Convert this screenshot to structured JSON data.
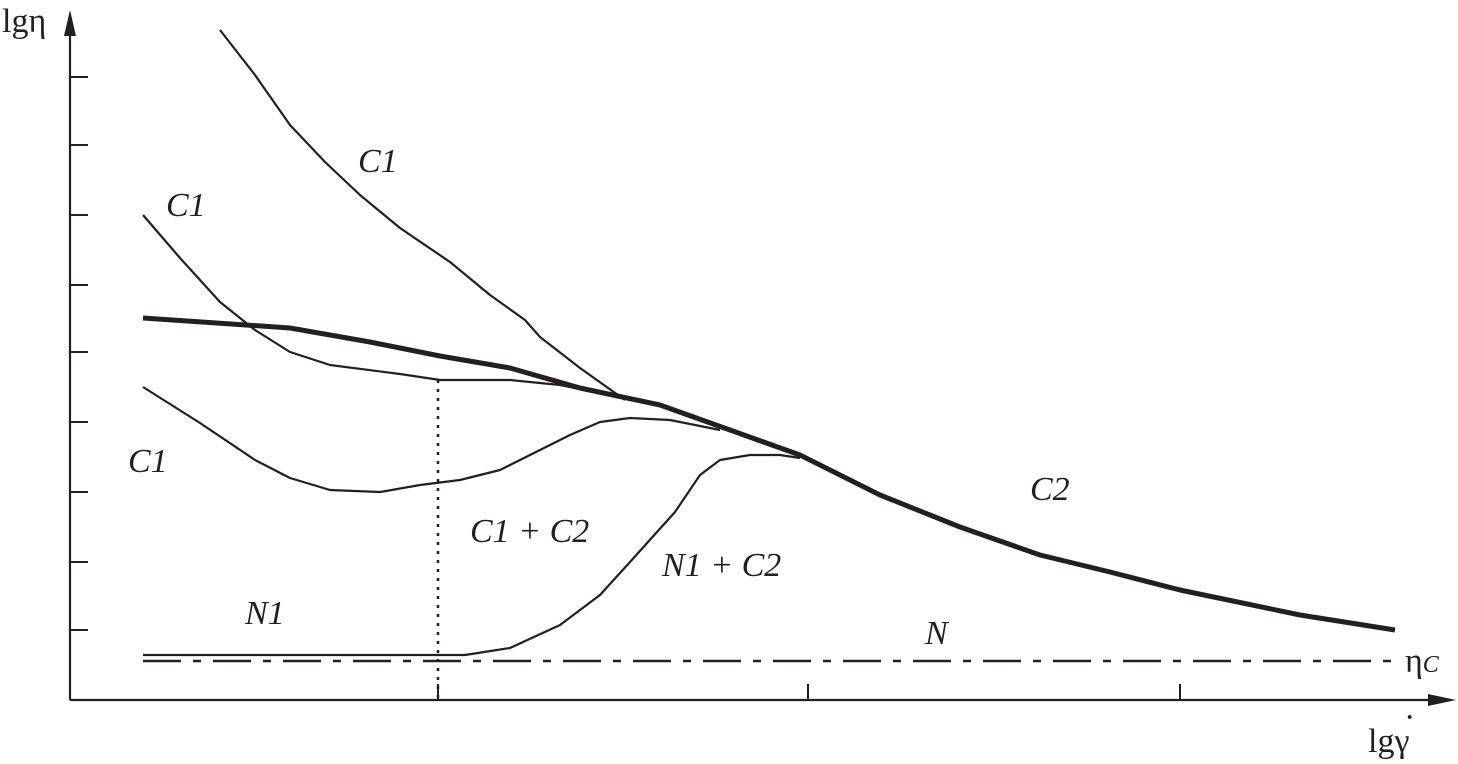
{
  "axes": {
    "y_label": "lgη",
    "x_label": "lgγ̇",
    "x_label_base": "lgγ",
    "x_label_dot": "·"
  },
  "regions": {
    "c1_top": "C1",
    "c1_mid": "C1",
    "c1_low": "C1",
    "c2": "C2",
    "c1_c2": "C1 + C2",
    "n1_c2": "N1 + C2",
    "n1": "N1",
    "n": "N"
  },
  "critical_line_label": {
    "symbol": "η",
    "subscript": "C"
  },
  "colors": {
    "ink": "#231f20",
    "background": "#ffffff"
  }
}
